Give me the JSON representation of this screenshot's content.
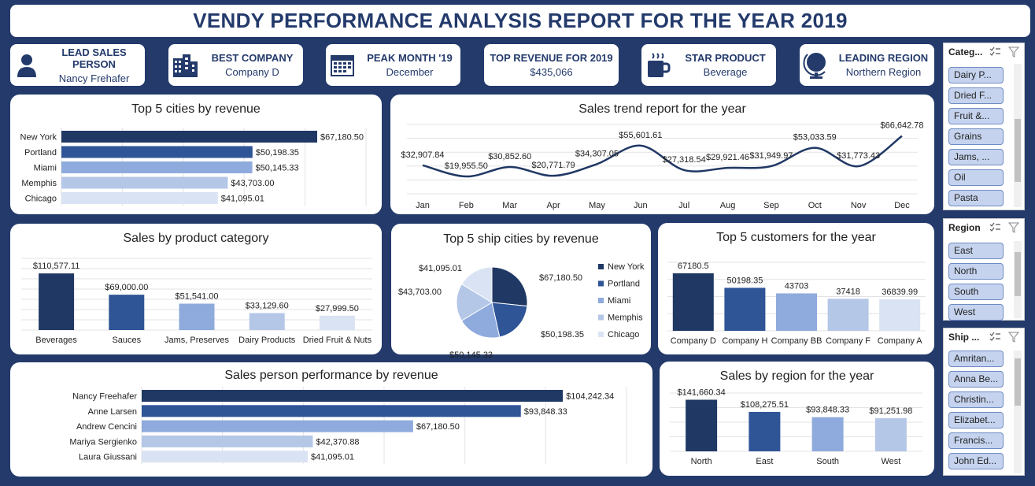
{
  "title": "VENDY PERFORMANCE ANALYSIS REPORT FOR THE YEAR 2019",
  "kpis": [
    {
      "label": "LEAD SALES PERSON",
      "value": "Nancy Frehafer",
      "icon": "person-icon"
    },
    {
      "label": "BEST COMPANY",
      "value": "Company D",
      "icon": "building-icon"
    },
    {
      "label": "PEAK MONTH '19",
      "value": "December",
      "icon": "calendar-icon"
    },
    {
      "label": "TOP REVENUE FOR 2019",
      "value": "$435,066",
      "icon": ""
    },
    {
      "label": "STAR PRODUCT",
      "value": "Beverage",
      "icon": "coffee-cup-icon"
    },
    {
      "label": "LEADING REGION",
      "value": "Northern Region",
      "icon": "globe-icon"
    }
  ],
  "colors": {
    "c1": "#203864",
    "c2": "#2f5597",
    "c3": "#8faadc",
    "c4": "#b4c7e7",
    "c5": "#dae3f3"
  },
  "chart_data": [
    {
      "id": "cities",
      "type": "bar",
      "orientation": "horizontal",
      "title": "Top 5 cities by revenue",
      "categories": [
        "New York",
        "Portland",
        "Miami",
        "Memphis",
        "Chicago"
      ],
      "values": [
        67180.5,
        50198.35,
        50145.33,
        43703.0,
        41095.01
      ],
      "labels": [
        "$67,180.50",
        "$50,198.35",
        "$50,145.33",
        "$43,703.00",
        "$41,095.01"
      ],
      "xlim": [
        0,
        80000
      ]
    },
    {
      "id": "trend",
      "type": "line",
      "title": "Sales trend report for the year",
      "categories": [
        "Jan",
        "Feb",
        "Mar",
        "Apr",
        "May",
        "Jun",
        "Jul",
        "Aug",
        "Sep",
        "Oct",
        "Nov",
        "Dec"
      ],
      "values": [
        32907.84,
        19955.5,
        30852.6,
        20771.79,
        34307.05,
        55601.61,
        27318.54,
        29921.46,
        31949.97,
        53033.59,
        31773.43,
        66642.78
      ],
      "labels": [
        "$32,907.84",
        "$19,955.50",
        "$30,852.60",
        "$20,771.79",
        "$34,307.05",
        "$55,601.61",
        "$27,318.54",
        "$29,921.46",
        "$31,949.97",
        "$53,033.59",
        "$31,773.43",
        "$66,642.78"
      ],
      "ylim": [
        0,
        80000
      ]
    },
    {
      "id": "category",
      "type": "bar",
      "title": "Sales by product category",
      "categories": [
        "Beverages",
        "Sauces",
        "Jams, Preserves",
        "Dairy Products",
        "Dried Fruit & Nuts"
      ],
      "values": [
        110577.11,
        69000.0,
        51541.0,
        33129.6,
        27999.5
      ],
      "labels": [
        "$110,577.11",
        "$69,000.00",
        "$51,541.00",
        "$33,129.60",
        "$27,999.50"
      ],
      "ylim": [
        0,
        140000
      ]
    },
    {
      "id": "ship",
      "type": "pie",
      "title": "Top 5 ship cities by revenue",
      "categories": [
        "New York",
        "Portland",
        "Miami",
        "Memphis",
        "Chicago"
      ],
      "values": [
        67180.5,
        50198.35,
        50145.33,
        43703.0,
        41095.01
      ],
      "labels": [
        "$67,180.50",
        "$50,198.35",
        "$50,145.33",
        "$43,703.00",
        "$41,095.01"
      ],
      "legend": "right"
    },
    {
      "id": "customers",
      "type": "bar",
      "title": "Top 5 customers for the year",
      "categories": [
        "Company D",
        "Company H",
        "Company BB",
        "Company F",
        "Company A"
      ],
      "values": [
        67180.5,
        50198.35,
        43703,
        37418,
        36839.99
      ],
      "labels": [
        "67180.5",
        "50198.35",
        "43703",
        "37418",
        "36839.99"
      ],
      "ylim": [
        0,
        80000
      ]
    },
    {
      "id": "salesperson",
      "type": "bar",
      "orientation": "horizontal",
      "title": "Sales person performance by revenue",
      "categories": [
        "Nancy Freehafer",
        "Anne Larsen",
        "Andrew Cencini",
        "Mariya Sergienko",
        "Laura Giussani"
      ],
      "values": [
        104242.34,
        93848.33,
        67180.5,
        42370.88,
        41095.01
      ],
      "labels": [
        "$104,242.34",
        "$93,848.33",
        "$67,180.50",
        "$42,370.88",
        "$41,095.01"
      ],
      "xlim": [
        0,
        120000
      ]
    },
    {
      "id": "region",
      "type": "bar",
      "title": "Sales by region for the year",
      "categories": [
        "North",
        "East",
        "South",
        "West"
      ],
      "values": [
        141660.34,
        108275.51,
        93848.33,
        91251.98
      ],
      "labels": [
        "$141,660.34",
        "$108,275.51",
        "$93,848.33",
        "$91,251.98"
      ],
      "ylim": [
        0,
        160000
      ]
    }
  ],
  "slicers": [
    {
      "title": "Categ...",
      "items": [
        "Dairy P...",
        "Dried F...",
        "Fruit &...",
        "Grains",
        "Jams, ...",
        "Oil",
        "Pasta"
      ]
    },
    {
      "title": "Region",
      "items": [
        "East",
        "North",
        "South",
        "West"
      ]
    },
    {
      "title": "Ship ...",
      "items": [
        "Amritan...",
        "Anna Be...",
        "Christin...",
        "Elizabet...",
        "Francis...",
        "John Ed..."
      ]
    }
  ]
}
